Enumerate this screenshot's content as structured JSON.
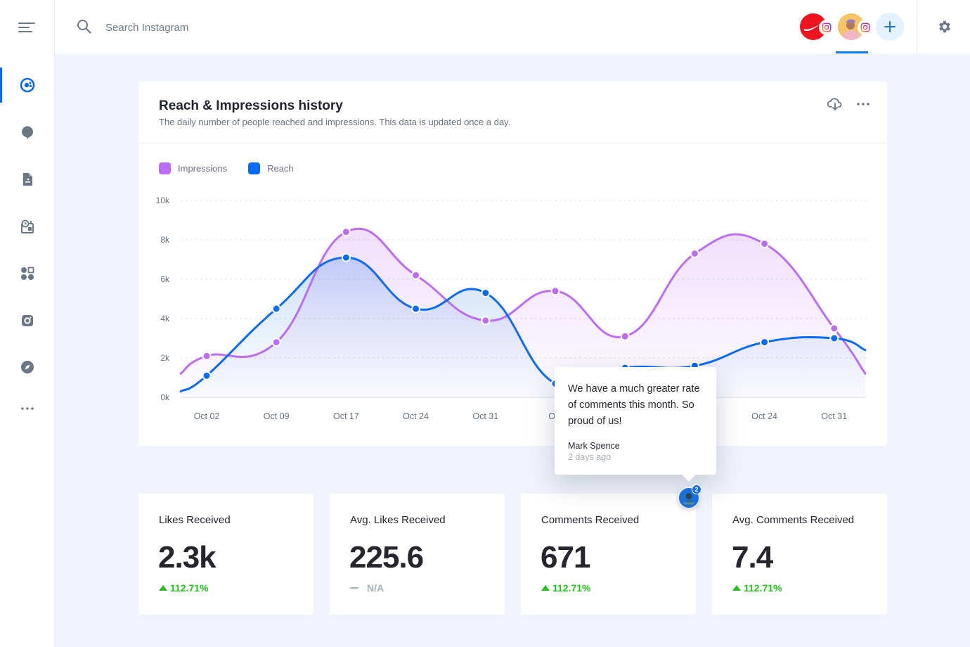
{
  "topbar": {
    "search_placeholder": "Search Instagram",
    "accounts": [
      {
        "name": "Nike",
        "network": "instagram",
        "selected": false
      },
      {
        "name": "User profile",
        "network": "instagram",
        "selected": true
      }
    ],
    "add_account_icon": "plus-icon",
    "settings_icon": "gear-icon"
  },
  "sidebar": {
    "menu_icon": "hamburger-menu-icon",
    "items": [
      {
        "icon": "analytics-icon",
        "active": true
      },
      {
        "icon": "chat-bubble-icon",
        "active": false
      },
      {
        "icon": "document-icon",
        "active": false
      },
      {
        "icon": "scheduler-icon",
        "active": false
      },
      {
        "icon": "apps-grid-icon",
        "active": false
      },
      {
        "icon": "instagram-icon",
        "active": false
      },
      {
        "icon": "compass-icon",
        "active": false
      },
      {
        "icon": "more-icon",
        "active": false
      }
    ]
  },
  "chart_card": {
    "title": "Reach & Impressions history",
    "subtitle": "The daily number of people reached and impressions. This data is updated once a day.",
    "download_icon": "cloud-download-icon",
    "more_icon": "more-horizontal-icon"
  },
  "chart_data": {
    "type": "area",
    "title": "Reach & Impressions history",
    "xlabel": "",
    "ylabel": "",
    "ylim": [
      0,
      10000
    ],
    "yticks": [
      "0k",
      "2k",
      "4k",
      "6k",
      "8k",
      "10k"
    ],
    "ytick_values": [
      0,
      2000,
      4000,
      6000,
      8000,
      10000
    ],
    "grid": true,
    "legend_position": "top-left",
    "x_tick_labels": [
      "Oct 02",
      "Oct 09",
      "Oct 17",
      "Oct 24",
      "Oct 31",
      "Oct",
      "",
      "",
      "Oct 24",
      "Oct 31"
    ],
    "series": [
      {
        "name": "Impressions",
        "color": "#bb6ef5",
        "start_value": 1200,
        "values": [
          2100,
          2800,
          8400,
          6200,
          3900,
          5400,
          3100,
          7300,
          7800,
          3500
        ],
        "end_value": 1200
      },
      {
        "name": "Reach",
        "color": "#0a6cf5",
        "start_value": 300,
        "values": [
          1100,
          4500,
          7100,
          4500,
          5300,
          700,
          1500,
          1600,
          2800,
          3000
        ],
        "end_value": 2400
      }
    ]
  },
  "stats": [
    {
      "label": "Likes Received",
      "value": "2.3k",
      "change": "112.71%",
      "trend": "up"
    },
    {
      "label": "Avg. Likes Received",
      "value": "225.6",
      "change": "N/A",
      "trend": "none"
    },
    {
      "label": "Comments Received",
      "value": "671",
      "change": "112.71%",
      "trend": "up"
    },
    {
      "label": "Avg. Comments Received",
      "value": "7.4",
      "change": "112.71%",
      "trend": "up"
    }
  ],
  "comment_tooltip": {
    "text": "We have a much greater rate of comments this month. So proud of us!",
    "author": "Mark Spence",
    "time": "2 days ago",
    "count": "2"
  },
  "colors": {
    "accent": "#0a6cf5",
    "impressions": "#bb6ef5",
    "reach": "#0a6cf5",
    "positive": "#25c21f",
    "neutral": "#a6b0ba"
  }
}
